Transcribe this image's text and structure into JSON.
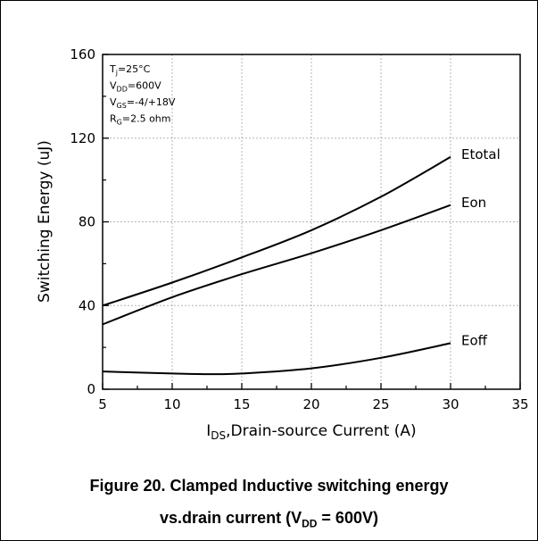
{
  "chart_data": {
    "type": "line",
    "xlabel_main": "I",
    "xlabel_sub": "DS",
    "xlabel_rest": ",Drain-source Current (A)",
    "ylabel": "Switching Energy (uJ)",
    "xlim": [
      5,
      35
    ],
    "ylim": [
      0,
      160
    ],
    "xticks": [
      5,
      10,
      15,
      20,
      25,
      30,
      35
    ],
    "yticks": [
      0,
      40,
      80,
      120,
      160
    ],
    "grid": true,
    "conditions": [
      {
        "main": "T",
        "sub": "j",
        "rest": "=25°C"
      },
      {
        "main": "V",
        "sub": "DD",
        "rest": "=600V"
      },
      {
        "main": "V",
        "sub": "GS",
        "rest": "=-4/+18V"
      },
      {
        "main": "R",
        "sub": "G",
        "rest": "=2.5 ohm"
      }
    ],
    "series": [
      {
        "name": "Etotal",
        "x": [
          5,
          10,
          15,
          20,
          25,
          30
        ],
        "y": [
          40,
          51,
          63,
          76,
          92,
          111
        ]
      },
      {
        "name": "Eon",
        "x": [
          5,
          10,
          15,
          20,
          25,
          30
        ],
        "y": [
          31,
          44,
          55,
          65,
          76,
          88
        ]
      },
      {
        "name": "Eoff",
        "x": [
          5,
          10,
          12.5,
          15,
          20,
          25,
          30
        ],
        "y": [
          8.5,
          7.5,
          7.2,
          7.5,
          10,
          15,
          22
        ]
      }
    ]
  },
  "caption": {
    "line1": "Figure 20. Clamped Inductive switching energy",
    "line2_pre": "vs.drain current (V",
    "line2_sub": "DD",
    "line2_post": " = 600V)"
  }
}
